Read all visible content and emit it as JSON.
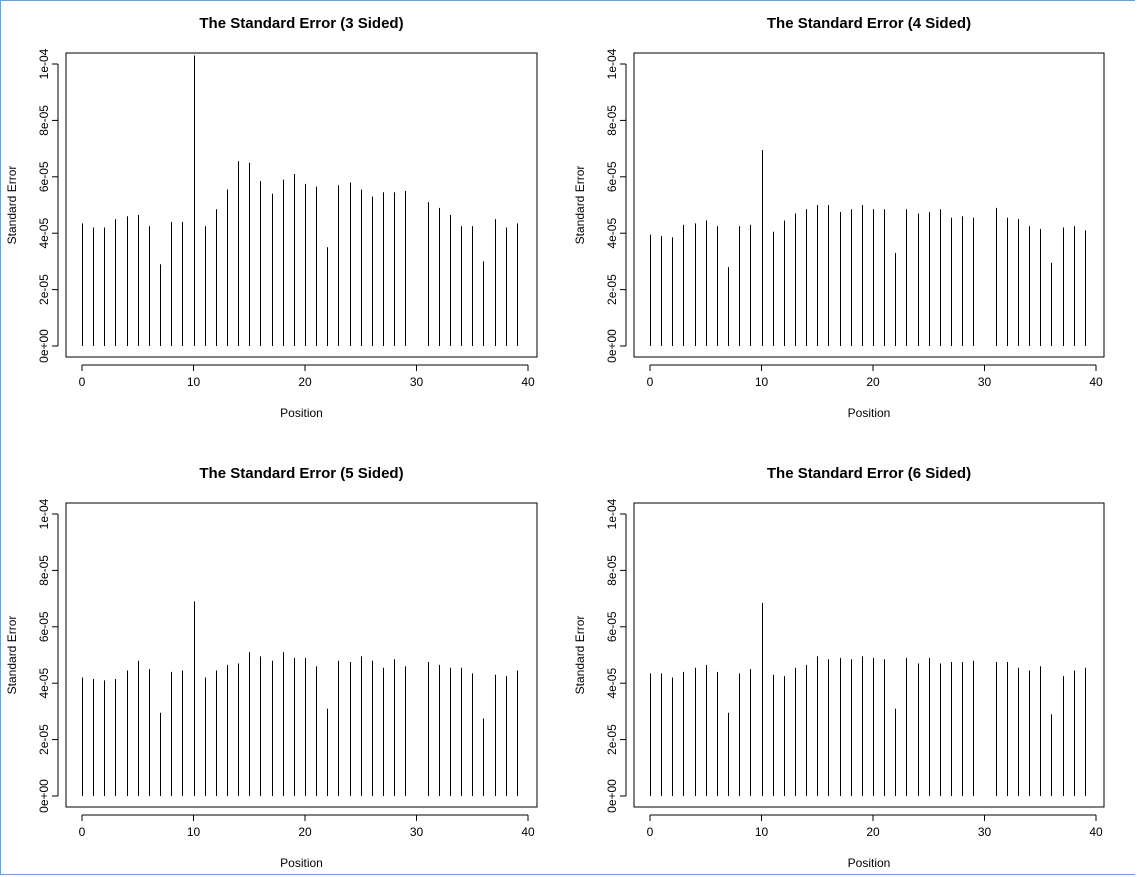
{
  "chart_data": [
    {
      "type": "bar",
      "style": "vertical-lines",
      "title": "The Standard Error (3 Sided)",
      "xlabel": "Position",
      "ylabel": "Standard Error",
      "xlim": [
        0,
        40
      ],
      "ylim": [
        0,
        0.0001
      ],
      "xticks": [
        "0",
        "10",
        "20",
        "30",
        "40"
      ],
      "yticks": [
        "0e+00",
        "2e-05",
        "4e-05",
        "6e-05",
        "8e-05",
        "1e-04"
      ],
      "x": [
        0,
        1,
        2,
        3,
        4,
        5,
        6,
        7,
        8,
        9,
        10,
        11,
        12,
        13,
        14,
        15,
        16,
        17,
        18,
        19,
        20,
        21,
        22,
        23,
        24,
        25,
        26,
        27,
        28,
        29,
        30,
        31,
        32,
        33,
        34,
        35,
        36,
        37,
        38,
        39
      ],
      "values": [
        4.35e-05,
        4.2e-05,
        4.2e-05,
        4.5e-05,
        4.6e-05,
        4.65e-05,
        4.25e-05,
        2.9e-05,
        4.4e-05,
        4.4e-05,
        0.000103,
        4.25e-05,
        4.85e-05,
        5.55e-05,
        6.55e-05,
        6.5e-05,
        5.85e-05,
        5.4e-05,
        5.9e-05,
        6.1e-05,
        5.75e-05,
        5.65e-05,
        3.5e-05,
        5.7e-05,
        5.8e-05,
        5.55e-05,
        5.3e-05,
        5.45e-05,
        5.45e-05,
        5.5e-05,
        0,
        5.1e-05,
        4.9e-05,
        4.65e-05,
        4.25e-05,
        4.25e-05,
        3e-05,
        4.5e-05,
        4.2e-05,
        4.35e-05
      ]
    },
    {
      "type": "bar",
      "style": "vertical-lines",
      "title": "The Standard Error (4 Sided)",
      "xlabel": "Position",
      "ylabel": "Standard Error",
      "xlim": [
        0,
        40
      ],
      "ylim": [
        0,
        0.0001
      ],
      "xticks": [
        "0",
        "10",
        "20",
        "30",
        "40"
      ],
      "yticks": [
        "0e+00",
        "2e-05",
        "4e-05",
        "6e-05",
        "8e-05",
        "1e-04"
      ],
      "x": [
        0,
        1,
        2,
        3,
        4,
        5,
        6,
        7,
        8,
        9,
        10,
        11,
        12,
        13,
        14,
        15,
        16,
        17,
        18,
        19,
        20,
        21,
        22,
        23,
        24,
        25,
        26,
        27,
        28,
        29,
        30,
        31,
        32,
        33,
        34,
        35,
        36,
        37,
        38,
        39
      ],
      "values": [
        3.95e-05,
        3.9e-05,
        3.85e-05,
        4.3e-05,
        4.35e-05,
        4.45e-05,
        4.25e-05,
        2.8e-05,
        4.25e-05,
        4.3e-05,
        6.95e-05,
        4.05e-05,
        4.45e-05,
        4.7e-05,
        4.85e-05,
        5e-05,
        5e-05,
        4.75e-05,
        4.85e-05,
        5e-05,
        4.85e-05,
        4.85e-05,
        3.3e-05,
        4.85e-05,
        4.7e-05,
        4.75e-05,
        4.85e-05,
        4.55e-05,
        4.6e-05,
        4.55e-05,
        0,
        4.9e-05,
        4.55e-05,
        4.5e-05,
        4.25e-05,
        4.15e-05,
        2.95e-05,
        4.2e-05,
        4.25e-05,
        4.1e-05
      ]
    },
    {
      "type": "bar",
      "style": "vertical-lines",
      "title": "The Standard Error (5 Sided)",
      "xlabel": "Position",
      "ylabel": "Standard Error",
      "xlim": [
        0,
        40
      ],
      "ylim": [
        0,
        0.0001
      ],
      "xticks": [
        "0",
        "10",
        "20",
        "30",
        "40"
      ],
      "yticks": [
        "0e+00",
        "2e-05",
        "4e-05",
        "6e-05",
        "8e-05",
        "1e-04"
      ],
      "x": [
        0,
        1,
        2,
        3,
        4,
        5,
        6,
        7,
        8,
        9,
        10,
        11,
        12,
        13,
        14,
        15,
        16,
        17,
        18,
        19,
        20,
        21,
        22,
        23,
        24,
        25,
        26,
        27,
        28,
        29,
        30,
        31,
        32,
        33,
        34,
        35,
        36,
        37,
        38,
        39
      ],
      "values": [
        4.2e-05,
        4.15e-05,
        4.1e-05,
        4.15e-05,
        4.45e-05,
        4.8e-05,
        4.5e-05,
        2.95e-05,
        4.4e-05,
        4.45e-05,
        6.9e-05,
        4.2e-05,
        4.45e-05,
        4.65e-05,
        4.7e-05,
        5.1e-05,
        4.95e-05,
        4.8e-05,
        5.1e-05,
        4.9e-05,
        4.9e-05,
        4.6e-05,
        3.1e-05,
        4.8e-05,
        4.75e-05,
        4.95e-05,
        4.8e-05,
        4.55e-05,
        4.85e-05,
        4.6e-05,
        0,
        4.75e-05,
        4.65e-05,
        4.55e-05,
        4.55e-05,
        4.35e-05,
        2.75e-05,
        4.3e-05,
        4.25e-05,
        4.45e-05
      ]
    },
    {
      "type": "bar",
      "style": "vertical-lines",
      "title": "The Standard Error (6 Sided)",
      "xlabel": "Position",
      "ylabel": "Standard Error",
      "xlim": [
        0,
        40
      ],
      "ylim": [
        0,
        0.0001
      ],
      "xticks": [
        "0",
        "10",
        "20",
        "30",
        "40"
      ],
      "yticks": [
        "0e+00",
        "2e-05",
        "4e-05",
        "6e-05",
        "8e-05",
        "1e-04"
      ],
      "x": [
        0,
        1,
        2,
        3,
        4,
        5,
        6,
        7,
        8,
        9,
        10,
        11,
        12,
        13,
        14,
        15,
        16,
        17,
        18,
        19,
        20,
        21,
        22,
        23,
        24,
        25,
        26,
        27,
        28,
        29,
        30,
        31,
        32,
        33,
        34,
        35,
        36,
        37,
        38,
        39
      ],
      "values": [
        4.35e-05,
        4.35e-05,
        4.2e-05,
        4.4e-05,
        4.55e-05,
        4.65e-05,
        4.4e-05,
        2.95e-05,
        4.35e-05,
        4.5e-05,
        6.85e-05,
        4.3e-05,
        4.25e-05,
        4.55e-05,
        4.65e-05,
        4.95e-05,
        4.85e-05,
        4.9e-05,
        4.85e-05,
        4.95e-05,
        4.9e-05,
        4.85e-05,
        3.1e-05,
        4.9e-05,
        4.7e-05,
        4.9e-05,
        4.7e-05,
        4.75e-05,
        4.75e-05,
        4.8e-05,
        0,
        4.75e-05,
        4.75e-05,
        4.55e-05,
        4.45e-05,
        4.6e-05,
        2.9e-05,
        4.25e-05,
        4.45e-05,
        4.55e-05
      ]
    }
  ]
}
